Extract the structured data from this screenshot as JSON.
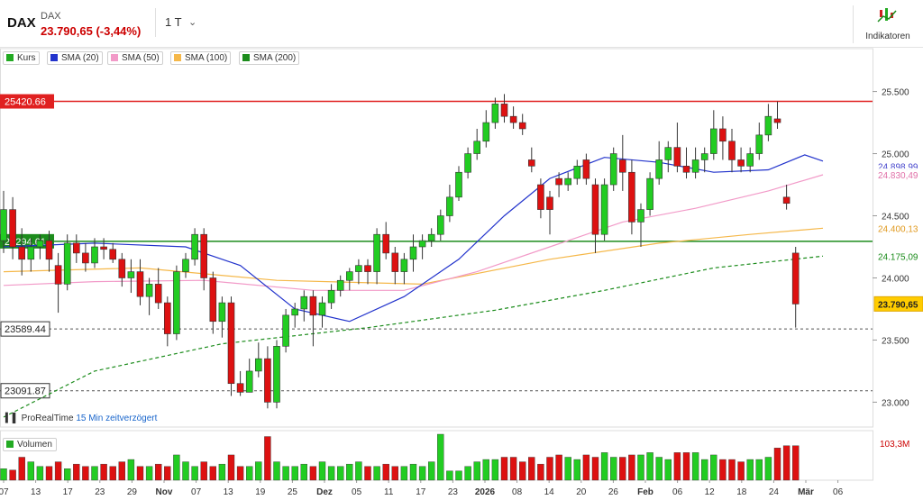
{
  "header": {
    "symbol": "DAX",
    "symbol_small": "DAX",
    "price_line": "23.790,65 (-3,44%)",
    "timeframe": "1 T",
    "indicators_label": "Indikatoren",
    "source_name": "ProRealTime",
    "source_delay": "15 Min zeitverzögert"
  },
  "legend": {
    "items": [
      {
        "label": "Kurs",
        "color": "#22aa22"
      },
      {
        "label": "SMA (20)",
        "color": "#2233cc"
      },
      {
        "label": "SMA (50)",
        "color": "#f29ac8"
      },
      {
        "label": "SMA (100)",
        "color": "#f5b84a"
      },
      {
        "label": "SMA (200)",
        "color": "#1c8c1c"
      }
    ],
    "volume_label": "Volumen"
  },
  "chart_data": {
    "type": "candlestick",
    "ylim": [
      22800,
      25700
    ],
    "y_ticks": [
      {
        "value": 23000,
        "label": "23.000"
      },
      {
        "value": 23500,
        "label": "23.500"
      },
      {
        "value": 24000,
        "label": "24.000"
      },
      {
        "value": 24500,
        "label": "24.500"
      },
      {
        "value": 25000,
        "label": "25.000"
      },
      {
        "value": 25500,
        "label": "25.500"
      }
    ],
    "x_ticks": [
      "07",
      "13",
      "17",
      "23",
      "29",
      "Nov",
      "07",
      "13",
      "19",
      "25",
      "Dez",
      "05",
      "11",
      "17",
      "23",
      "2026",
      "08",
      "14",
      "20",
      "26",
      "Feb",
      "06",
      "12",
      "18",
      "24",
      "Mär",
      "06"
    ],
    "h_lines": [
      {
        "value": 25420.66,
        "label": "25420.66",
        "style": "solid",
        "color": "#e02020"
      },
      {
        "value": 24294.61,
        "label": "24294.61",
        "style": "solid",
        "color": "#1c8c1c"
      },
      {
        "value": 23589.44,
        "label": "23589.44",
        "style": "dashed",
        "color": "#555555"
      },
      {
        "value": 23091.87,
        "label": "23091.87",
        "style": "dashed",
        "color": "#555555"
      }
    ],
    "value_labels": [
      {
        "label": "24.898,99",
        "value": 24898.99,
        "color": "#4444cc"
      },
      {
        "label": "24.830,49",
        "value": 24830.49,
        "color": "#e070a8"
      },
      {
        "label": "24.400,13",
        "value": 24400.13,
        "color": "#e09a20"
      },
      {
        "label": "24.175,09",
        "value": 24175.09,
        "color": "#1c8c1c"
      },
      {
        "label": "23.790,65",
        "value": 23790.65,
        "color": "#222222"
      }
    ],
    "volume_label_value": "103,3M",
    "candles": [
      [
        24300,
        24700,
        24200,
        24550
      ],
      [
        24550,
        24650,
        24150,
        24250
      ],
      [
        24250,
        24400,
        24020,
        24150
      ],
      [
        24150,
        24320,
        24050,
        24250
      ],
      [
        24250,
        24350,
        24150,
        24300
      ],
      [
        24300,
        24380,
        24050,
        24150
      ],
      [
        24100,
        24200,
        23720,
        23950
      ],
      [
        23950,
        24350,
        23900,
        24280
      ],
      [
        24280,
        24350,
        24120,
        24200
      ],
      [
        24200,
        24280,
        24050,
        24120
      ],
      [
        24120,
        24320,
        24080,
        24250
      ],
      [
        24250,
        24320,
        24150,
        24230
      ],
      [
        24230,
        24280,
        24120,
        24150
      ],
      [
        24150,
        24200,
        23930,
        24000
      ],
      [
        24000,
        24150,
        23880,
        24050
      ],
      [
        24050,
        24150,
        23780,
        23850
      ],
      [
        23850,
        24000,
        23700,
        23950
      ],
      [
        23950,
        24080,
        23750,
        23800
      ],
      [
        23800,
        23850,
        23450,
        23550
      ],
      [
        23550,
        24100,
        23500,
        24050
      ],
      [
        24050,
        24200,
        24000,
        24150
      ],
      [
        24150,
        24400,
        24100,
        24350
      ],
      [
        24350,
        24400,
        23900,
        24000
      ],
      [
        24000,
        24050,
        23550,
        23650
      ],
      [
        23650,
        23850,
        23520,
        23800
      ],
      [
        23800,
        23850,
        23050,
        23150
      ],
      [
        23150,
        23250,
        23050,
        23080
      ],
      [
        23080,
        23350,
        23080,
        23250
      ],
      [
        23250,
        23480,
        23200,
        23350
      ],
      [
        23350,
        23450,
        22950,
        23000
      ],
      [
        23000,
        23500,
        22950,
        23450
      ],
      [
        23450,
        23750,
        23400,
        23700
      ],
      [
        23700,
        23800,
        23600,
        23750
      ],
      [
        23750,
        23900,
        23650,
        23850
      ],
      [
        23850,
        23900,
        23450,
        23700
      ],
      [
        23700,
        23850,
        23600,
        23800
      ],
      [
        23800,
        23950,
        23750,
        23900
      ],
      [
        23900,
        24020,
        23850,
        23980
      ],
      [
        23980,
        24080,
        23900,
        24050
      ],
      [
        24050,
        24150,
        23950,
        24100
      ],
      [
        24100,
        24150,
        23950,
        24050
      ],
      [
        24050,
        24400,
        23950,
        24350
      ],
      [
        24350,
        24450,
        24150,
        24200
      ],
      [
        24200,
        24250,
        23950,
        24050
      ],
      [
        24050,
        24200,
        23950,
        24150
      ],
      [
        24150,
        24350,
        24050,
        24250
      ],
      [
        24250,
        24350,
        24150,
        24300
      ],
      [
        24300,
        24400,
        24250,
        24350
      ],
      [
        24350,
        24550,
        24300,
        24500
      ],
      [
        24500,
        24750,
        24450,
        24650
      ],
      [
        24650,
        24900,
        24620,
        24850
      ],
      [
        24850,
        25050,
        24800,
        25000
      ],
      [
        25000,
        25200,
        24950,
        25100
      ],
      [
        25100,
        25350,
        25050,
        25250
      ],
      [
        25250,
        25450,
        25200,
        25400
      ],
      [
        25400,
        25480,
        25250,
        25300
      ],
      [
        25300,
        25380,
        25200,
        25250
      ],
      [
        25250,
        25320,
        25150,
        25200
      ],
      [
        24950,
        25050,
        24850,
        24900
      ],
      [
        24750,
        24800,
        24480,
        24550
      ],
      [
        24650,
        24700,
        24350,
        24550
      ],
      [
        24800,
        24850,
        24650,
        24750
      ],
      [
        24750,
        24850,
        24700,
        24800
      ],
      [
        24800,
        24950,
        24750,
        24900
      ],
      [
        24950,
        25000,
        24750,
        24800
      ],
      [
        24750,
        24800,
        24200,
        24350
      ],
      [
        24350,
        24800,
        24300,
        24750
      ],
      [
        24750,
        25050,
        24700,
        25000
      ],
      [
        24950,
        25150,
        24700,
        24850
      ],
      [
        24850,
        24950,
        24350,
        24450
      ],
      [
        24450,
        24600,
        24250,
        24550
      ],
      [
        24550,
        24850,
        24500,
        24800
      ],
      [
        24800,
        25100,
        24750,
        24950
      ],
      [
        24950,
        25100,
        24850,
        25050
      ],
      [
        25050,
        25250,
        24850,
        24900
      ],
      [
        24900,
        25050,
        24800,
        24850
      ],
      [
        24850,
        25050,
        24800,
        24950
      ],
      [
        24950,
        25050,
        24850,
        25000
      ],
      [
        25000,
        25350,
        24950,
        25200
      ],
      [
        25200,
        25300,
        24950,
        25100
      ],
      [
        25100,
        25200,
        24850,
        24950
      ],
      [
        24950,
        25050,
        24850,
        24900
      ],
      [
        24900,
        25050,
        24850,
        25000
      ],
      [
        25000,
        25250,
        24950,
        25150
      ],
      [
        25150,
        25400,
        25100,
        25300
      ],
      [
        25280,
        25420,
        25200,
        25250
      ],
      [
        24650,
        24750,
        24550,
        24600
      ],
      [
        24200,
        24250,
        23600,
        23790
      ]
    ],
    "volume_ratios": [
      0.25,
      0.22,
      0.5,
      0.4,
      0.3,
      0.3,
      0.4,
      0.25,
      0.35,
      0.3,
      0.3,
      0.35,
      0.3,
      0.4,
      0.45,
      0.3,
      0.3,
      0.35,
      0.3,
      0.55,
      0.4,
      0.3,
      0.4,
      0.3,
      0.35,
      0.55,
      0.3,
      0.3,
      0.4,
      0.95,
      0.4,
      0.3,
      0.3,
      0.35,
      0.3,
      0.4,
      0.3,
      0.3,
      0.35,
      0.4,
      0.3,
      0.3,
      0.35,
      0.3,
      0.3,
      0.35,
      0.3,
      0.4,
      1.0,
      0.2,
      0.2,
      0.3,
      0.4,
      0.45,
      0.45,
      0.5,
      0.5,
      0.4,
      0.5,
      0.35,
      0.5,
      0.55,
      0.5,
      0.45,
      0.55,
      0.5,
      0.6,
      0.5,
      0.5,
      0.55,
      0.55,
      0.6,
      0.5,
      0.45,
      0.6,
      0.6,
      0.6,
      0.45,
      0.55,
      0.45,
      0.45,
      0.4,
      0.45,
      0.45,
      0.5,
      0.7,
      0.75,
      0.75
    ],
    "sma20": [
      [
        0,
        24250
      ],
      [
        10,
        24280
      ],
      [
        20,
        24250
      ],
      [
        26,
        24100
      ],
      [
        32,
        23750
      ],
      [
        38,
        23650
      ],
      [
        44,
        23850
      ],
      [
        50,
        24150
      ],
      [
        55,
        24500
      ],
      [
        60,
        24800
      ],
      [
        66,
        24970
      ],
      [
        72,
        24930
      ],
      [
        78,
        24850
      ],
      [
        84,
        24870
      ],
      [
        88,
        24990
      ],
      [
        90,
        24940
      ]
    ],
    "sma50": [
      [
        0,
        23940
      ],
      [
        10,
        23970
      ],
      [
        22,
        23980
      ],
      [
        34,
        23900
      ],
      [
        44,
        23900
      ],
      [
        52,
        24050
      ],
      [
        60,
        24250
      ],
      [
        68,
        24450
      ],
      [
        76,
        24560
      ],
      [
        84,
        24700
      ],
      [
        90,
        24830
      ]
    ],
    "sma100": [
      [
        0,
        24050
      ],
      [
        15,
        24080
      ],
      [
        30,
        23980
      ],
      [
        46,
        23950
      ],
      [
        60,
        24150
      ],
      [
        72,
        24280
      ],
      [
        82,
        24350
      ],
      [
        90,
        24400
      ]
    ],
    "sma200": [
      [
        0,
        22880
      ],
      [
        10,
        23250
      ],
      [
        24,
        23470
      ],
      [
        40,
        23600
      ],
      [
        54,
        23740
      ],
      [
        66,
        23900
      ],
      [
        78,
        24080
      ],
      [
        90,
        24175
      ]
    ]
  }
}
